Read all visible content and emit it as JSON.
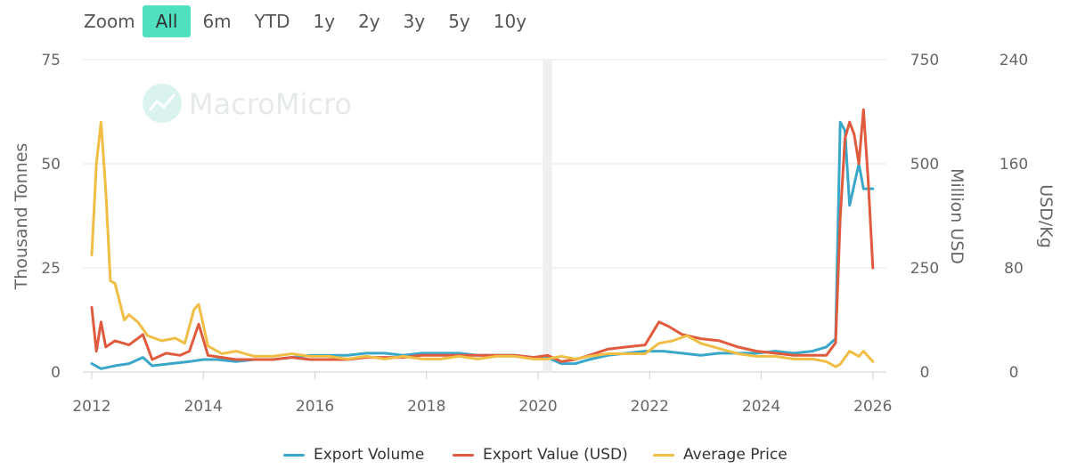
{
  "zoom": {
    "label": "Zoom",
    "options": [
      "All",
      "6m",
      "YTD",
      "1y",
      "2y",
      "3y",
      "5y",
      "10y"
    ],
    "active": "All"
  },
  "watermark": "MacroMicro",
  "colors": {
    "export_volume": "#3aa7c9",
    "export_value": "#e05a3e",
    "average_price": "#f0bd45",
    "grid": "#e6e6e6",
    "band": "#efefef"
  },
  "chart_data": {
    "type": "line",
    "title": "",
    "x_ticks": [
      "2012",
      "2014",
      "2016",
      "2018",
      "2020",
      "2022",
      "2024",
      "2026"
    ],
    "xlim": [
      "2012-01",
      "2026-02"
    ],
    "shaded_band": [
      "2020-02",
      "2020-04"
    ],
    "axes": {
      "left": {
        "label": "Thousand Tonnes",
        "ylim": [
          0,
          75
        ],
        "ticks": [
          "0",
          "25",
          "50",
          "75"
        ]
      },
      "right1": {
        "label": "Million USD",
        "ylim": [
          0,
          750
        ],
        "ticks": [
          "0",
          "250",
          "500",
          "750"
        ]
      },
      "right2": {
        "label": "USD/Kg",
        "ylim": [
          0,
          240
        ],
        "ticks": [
          "0",
          "80",
          "160",
          "240"
        ]
      }
    },
    "grid": true,
    "legend_position": "bottom-center",
    "series": [
      {
        "name": "Export Volume",
        "axis": "left",
        "points": [
          [
            "2012-01",
            2
          ],
          [
            "2012-03",
            0.8
          ],
          [
            "2012-06",
            1.5
          ],
          [
            "2012-09",
            2
          ],
          [
            "2012-12",
            3.5
          ],
          [
            "2013-02",
            1.5
          ],
          [
            "2013-06",
            2
          ],
          [
            "2013-10",
            2.5
          ],
          [
            "2014-01",
            3
          ],
          [
            "2014-04",
            3
          ],
          [
            "2014-08",
            2.5
          ],
          [
            "2014-12",
            3
          ],
          [
            "2015-04",
            3
          ],
          [
            "2015-08",
            3.5
          ],
          [
            "2015-12",
            4
          ],
          [
            "2016-04",
            4
          ],
          [
            "2016-08",
            4
          ],
          [
            "2016-12",
            4.5
          ],
          [
            "2017-04",
            4.5
          ],
          [
            "2017-08",
            4
          ],
          [
            "2017-12",
            4.5
          ],
          [
            "2018-04",
            4.5
          ],
          [
            "2018-08",
            4.5
          ],
          [
            "2018-12",
            4
          ],
          [
            "2019-04",
            4
          ],
          [
            "2019-08",
            4
          ],
          [
            "2019-12",
            3.5
          ],
          [
            "2020-03",
            3.5
          ],
          [
            "2020-06",
            2
          ],
          [
            "2020-09",
            2
          ],
          [
            "2020-12",
            3
          ],
          [
            "2021-04",
            4
          ],
          [
            "2021-08",
            4.5
          ],
          [
            "2021-12",
            5
          ],
          [
            "2022-04",
            5
          ],
          [
            "2022-08",
            4.5
          ],
          [
            "2022-12",
            4
          ],
          [
            "2023-04",
            4.5
          ],
          [
            "2023-08",
            4.5
          ],
          [
            "2023-12",
            4.5
          ],
          [
            "2024-04",
            5
          ],
          [
            "2024-08",
            4.5
          ],
          [
            "2024-12",
            5
          ],
          [
            "2025-03",
            6
          ],
          [
            "2025-05",
            8
          ],
          [
            "2025-06",
            60
          ],
          [
            "2025-07",
            58
          ],
          [
            "2025-08",
            40
          ],
          [
            "2025-09",
            45
          ],
          [
            "2025-10",
            50
          ],
          [
            "2025-11",
            44
          ],
          [
            "2026-01",
            44
          ]
        ]
      },
      {
        "name": "Export Value (USD)",
        "axis": "right1",
        "points": [
          [
            "2012-01",
            155
          ],
          [
            "2012-02",
            50
          ],
          [
            "2012-03",
            120
          ],
          [
            "2012-04",
            60
          ],
          [
            "2012-06",
            75
          ],
          [
            "2012-09",
            65
          ],
          [
            "2012-12",
            90
          ],
          [
            "2013-02",
            30
          ],
          [
            "2013-05",
            45
          ],
          [
            "2013-08",
            40
          ],
          [
            "2013-10",
            50
          ],
          [
            "2013-12",
            115
          ],
          [
            "2014-02",
            40
          ],
          [
            "2014-05",
            35
          ],
          [
            "2014-08",
            30
          ],
          [
            "2014-12",
            30
          ],
          [
            "2015-04",
            30
          ],
          [
            "2015-08",
            35
          ],
          [
            "2015-12",
            30
          ],
          [
            "2016-04",
            30
          ],
          [
            "2016-08",
            30
          ],
          [
            "2016-12",
            35
          ],
          [
            "2017-04",
            35
          ],
          [
            "2017-08",
            35
          ],
          [
            "2017-12",
            40
          ],
          [
            "2018-04",
            40
          ],
          [
            "2018-08",
            40
          ],
          [
            "2018-12",
            40
          ],
          [
            "2019-04",
            40
          ],
          [
            "2019-08",
            40
          ],
          [
            "2019-12",
            35
          ],
          [
            "2020-03",
            40
          ],
          [
            "2020-06",
            25
          ],
          [
            "2020-09",
            30
          ],
          [
            "2020-12",
            40
          ],
          [
            "2021-04",
            55
          ],
          [
            "2021-08",
            60
          ],
          [
            "2021-12",
            65
          ],
          [
            "2022-03",
            120
          ],
          [
            "2022-05",
            110
          ],
          [
            "2022-08",
            90
          ],
          [
            "2022-12",
            80
          ],
          [
            "2023-04",
            75
          ],
          [
            "2023-08",
            60
          ],
          [
            "2023-12",
            50
          ],
          [
            "2024-04",
            45
          ],
          [
            "2024-08",
            40
          ],
          [
            "2024-12",
            40
          ],
          [
            "2025-03",
            40
          ],
          [
            "2025-05",
            70
          ],
          [
            "2025-06",
            370
          ],
          [
            "2025-07",
            560
          ],
          [
            "2025-08",
            600
          ],
          [
            "2025-09",
            570
          ],
          [
            "2025-10",
            500
          ],
          [
            "2025-11",
            630
          ],
          [
            "2025-12",
            460
          ],
          [
            "2026-01",
            250
          ]
        ]
      },
      {
        "name": "Average Price",
        "axis": "right2",
        "points": [
          [
            "2012-01",
            90
          ],
          [
            "2012-02",
            160
          ],
          [
            "2012-03",
            192
          ],
          [
            "2012-04",
            140
          ],
          [
            "2012-05",
            70
          ],
          [
            "2012-06",
            68
          ],
          [
            "2012-08",
            40
          ],
          [
            "2012-09",
            44
          ],
          [
            "2012-11",
            38
          ],
          [
            "2013-01",
            28
          ],
          [
            "2013-04",
            24
          ],
          [
            "2013-07",
            26
          ],
          [
            "2013-09",
            22
          ],
          [
            "2013-11",
            48
          ],
          [
            "2013-12",
            52
          ],
          [
            "2014-02",
            20
          ],
          [
            "2014-05",
            14
          ],
          [
            "2014-08",
            16
          ],
          [
            "2014-12",
            12
          ],
          [
            "2015-04",
            12
          ],
          [
            "2015-08",
            14
          ],
          [
            "2015-12",
            12
          ],
          [
            "2016-04",
            12
          ],
          [
            "2016-08",
            10
          ],
          [
            "2016-12",
            12
          ],
          [
            "2017-04",
            10
          ],
          [
            "2017-08",
            12
          ],
          [
            "2017-12",
            10
          ],
          [
            "2018-04",
            10
          ],
          [
            "2018-08",
            12
          ],
          [
            "2018-12",
            10
          ],
          [
            "2019-04",
            12
          ],
          [
            "2019-08",
            12
          ],
          [
            "2019-12",
            10
          ],
          [
            "2020-03",
            10
          ],
          [
            "2020-06",
            12
          ],
          [
            "2020-09",
            10
          ],
          [
            "2020-12",
            12
          ],
          [
            "2021-04",
            14
          ],
          [
            "2021-08",
            14
          ],
          [
            "2021-12",
            14
          ],
          [
            "2022-03",
            22
          ],
          [
            "2022-06",
            24
          ],
          [
            "2022-09",
            28
          ],
          [
            "2022-12",
            22
          ],
          [
            "2023-04",
            18
          ],
          [
            "2023-08",
            14
          ],
          [
            "2023-12",
            12
          ],
          [
            "2024-04",
            12
          ],
          [
            "2024-08",
            10
          ],
          [
            "2024-12",
            10
          ],
          [
            "2025-03",
            8
          ],
          [
            "2025-05",
            4
          ],
          [
            "2025-06",
            6
          ],
          [
            "2025-08",
            16
          ],
          [
            "2025-10",
            12
          ],
          [
            "2025-11",
            16
          ],
          [
            "2026-01",
            8
          ]
        ]
      }
    ]
  }
}
